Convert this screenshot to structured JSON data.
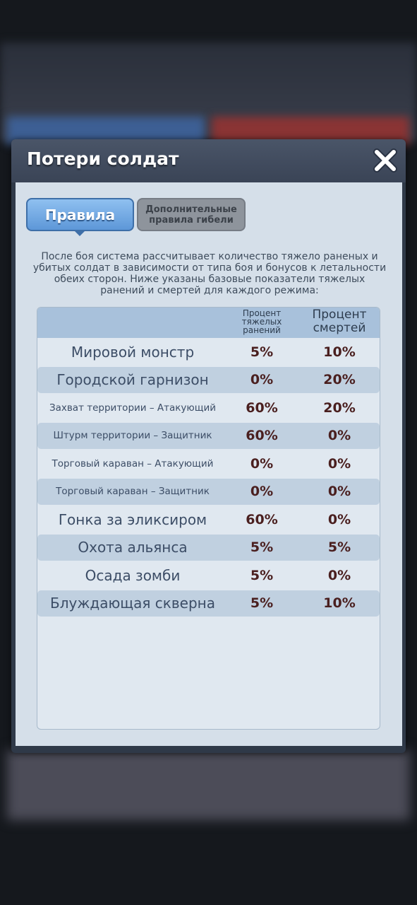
{
  "dialog": {
    "title": "Потери солдат",
    "tabs": [
      "Правила",
      "Дополнительные правила гибели"
    ],
    "description": "После боя система рассчитывает количество тяжело раненых и убитых солдат в зависимости от типа боя и бонусов к летальности обеих сторон. Ниже указаны базовые показатели тяжелых ранений и смертей для каждого режима:",
    "table": {
      "header": {
        "wounded": "Процент тяжелых ранений",
        "deaths": "Процент смертей"
      },
      "rows": [
        {
          "name": "Мировой монстр",
          "wounded": "5%",
          "deaths": "10%"
        },
        {
          "name": "Городской гарнизон",
          "wounded": "0%",
          "deaths": "20%"
        },
        {
          "name": "Захват территории – Атакующий",
          "wounded": "60%",
          "deaths": "20%"
        },
        {
          "name": "Штурм территории – Защитник",
          "wounded": "60%",
          "deaths": "0%"
        },
        {
          "name": "Торговый караван – Атакующий",
          "wounded": "0%",
          "deaths": "0%"
        },
        {
          "name": "Торговый караван – Защитник",
          "wounded": "0%",
          "deaths": "0%"
        },
        {
          "name": "Гонка за эликсиром",
          "wounded": "60%",
          "deaths": "0%"
        },
        {
          "name": "Охота альянса",
          "wounded": "5%",
          "deaths": "5%"
        },
        {
          "name": "Осада зомби",
          "wounded": "5%",
          "deaths": "0%"
        },
        {
          "name": "Блуждающая скверна",
          "wounded": "5%",
          "deaths": "10%"
        }
      ]
    }
  }
}
